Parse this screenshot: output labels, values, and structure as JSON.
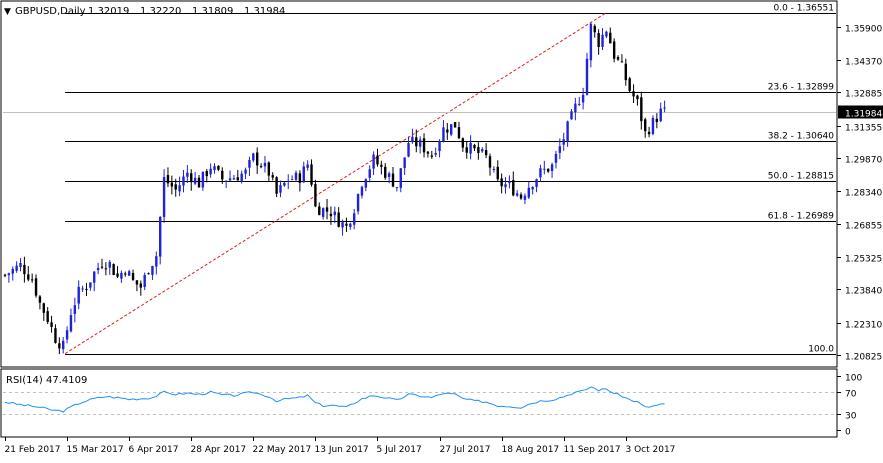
{
  "header": {
    "arrow": "▼",
    "symbol": "GBPUSD,Daily",
    "open": "1.32019",
    "high": "1.32220",
    "low": "1.31809",
    "close": "1.31984"
  },
  "colors": {
    "bull": "#1e22d8",
    "bear": "#000000",
    "fib": "#000000",
    "trend": "#e02020",
    "rsi": "#1e90ff",
    "grid": "#c0c0c0"
  },
  "chart_data": [
    {
      "type": "candlestick",
      "title": "GBPUSD,Daily",
      "ylim": [
        1.2032,
        1.3704
      ],
      "yticks": [
        "1.35900",
        "1.34370",
        "1.32885",
        "1.31355",
        "1.29870",
        "1.28340",
        "1.26855",
        "1.25325",
        "1.23840",
        "1.22310",
        "1.20825"
      ],
      "current_price": "1.31984",
      "current_price_value": 1.31984,
      "fib_levels": [
        {
          "label": "0.0 - 1.36551",
          "value": 1.36551
        },
        {
          "label": "23.6 - 1.32899",
          "value": 1.32899
        },
        {
          "label": "38.2 - 1.30640",
          "value": 1.3064
        },
        {
          "label": "50.0 - 1.28815",
          "value": 1.28815
        },
        {
          "label": "61.8 - 1.26989",
          "value": 1.26989
        },
        {
          "label": "100.0",
          "value": 1.2089
        }
      ],
      "trend_line": {
        "from": {
          "date": "2017-03-14",
          "price": 1.2089
        },
        "to": {
          "date": "2017-09-20",
          "price": 1.36551
        }
      },
      "xticks": [
        "21 Feb 2017",
        "15 Mar 2017",
        "6 Apr 2017",
        "28 Apr 2017",
        "22 May 2017",
        "13 Jun 2017",
        "5 Jul 2017",
        "27 Jul 2017",
        "18 Aug 2017",
        "11 Sep 2017",
        "3 Oct 2017"
      ],
      "xtick_index": [
        0,
        16,
        32,
        48,
        64,
        80,
        96,
        112,
        128,
        144,
        160
      ],
      "close_path": [
        [
          0,
          1.245
        ],
        [
          4,
          1.2495
        ],
        [
          7,
          1.243
        ],
        [
          9,
          1.232
        ],
        [
          11,
          1.225
        ],
        [
          13,
          1.216
        ],
        [
          15,
          1.212
        ],
        [
          17,
          1.228
        ],
        [
          19,
          1.237
        ],
        [
          21,
          1.24
        ],
        [
          23,
          1.246
        ],
        [
          25,
          1.251
        ],
        [
          27,
          1.25
        ],
        [
          29,
          1.244
        ],
        [
          31,
          1.248
        ],
        [
          33,
          1.242
        ],
        [
          35,
          1.2395
        ],
        [
          37,
          1.248
        ],
        [
          39,
          1.254
        ],
        [
          41,
          1.289
        ],
        [
          44,
          1.284
        ],
        [
          47,
          1.292
        ],
        [
          50,
          1.287
        ],
        [
          53,
          1.295
        ],
        [
          56,
          1.289
        ],
        [
          59,
          1.29
        ],
        [
          62,
          1.292
        ],
        [
          64,
          1.299
        ],
        [
          66,
          1.296
        ],
        [
          68,
          1.292
        ],
        [
          70,
          1.282
        ],
        [
          73,
          1.289
        ],
        [
          76,
          1.29
        ],
        [
          78,
          1.296
        ],
        [
          79,
          1.288
        ],
        [
          80,
          1.276
        ],
        [
          82,
          1.275
        ],
        [
          84,
          1.274
        ],
        [
          86,
          1.27
        ],
        [
          88,
          1.267
        ],
        [
          90,
          1.276
        ],
        [
          92,
          1.288
        ],
        [
          95,
          1.298
        ],
        [
          98,
          1.292
        ],
        [
          101,
          1.286
        ],
        [
          104,
          1.306
        ],
        [
          107,
          1.305
        ],
        [
          110,
          1.3
        ],
        [
          113,
          1.312
        ],
        [
          116,
          1.314
        ],
        [
          118,
          1.305
        ],
        [
          121,
          1.302
        ],
        [
          124,
          1.299
        ],
        [
          127,
          1.287
        ],
        [
          130,
          1.286
        ],
        [
          133,
          1.281
        ],
        [
          135,
          1.286
        ],
        [
          138,
          1.292
        ],
        [
          141,
          1.295
        ],
        [
          144,
          1.308
        ],
        [
          147,
          1.322
        ],
        [
          149,
          1.33
        ],
        [
          151,
          1.359
        ],
        [
          153,
          1.352
        ],
        [
          155,
          1.358
        ],
        [
          157,
          1.346
        ],
        [
          159,
          1.34
        ],
        [
          161,
          1.33
        ],
        [
          163,
          1.324
        ],
        [
          165,
          1.31
        ],
        [
          167,
          1.315
        ],
        [
          169,
          1.3198
        ]
      ],
      "rsi_title": "RSI(14) 47.4109",
      "rsi_levels": [
        "100",
        "70",
        "30",
        "0"
      ],
      "rsi_path": [
        [
          0,
          52
        ],
        [
          3,
          48
        ],
        [
          6,
          45
        ],
        [
          9,
          42
        ],
        [
          12,
          37
        ],
        [
          15,
          35
        ],
        [
          18,
          46
        ],
        [
          20,
          52
        ],
        [
          23,
          58
        ],
        [
          26,
          62
        ],
        [
          29,
          60
        ],
        [
          32,
          57
        ],
        [
          35,
          58
        ],
        [
          38,
          60
        ],
        [
          41,
          70
        ],
        [
          44,
          66
        ],
        [
          47,
          68
        ],
        [
          50,
          66
        ],
        [
          53,
          70
        ],
        [
          56,
          65
        ],
        [
          59,
          64
        ],
        [
          62,
          68
        ],
        [
          64,
          70
        ],
        [
          66,
          66
        ],
        [
          68,
          62
        ],
        [
          70,
          54
        ],
        [
          73,
          58
        ],
        [
          76,
          60
        ],
        [
          78,
          64
        ],
        [
          80,
          50
        ],
        [
          82,
          45
        ],
        [
          84,
          46
        ],
        [
          86,
          44
        ],
        [
          88,
          42
        ],
        [
          90,
          50
        ],
        [
          92,
          58
        ],
        [
          95,
          64
        ],
        [
          98,
          60
        ],
        [
          101,
          55
        ],
        [
          104,
          66
        ],
        [
          107,
          63
        ],
        [
          110,
          60
        ],
        [
          113,
          68
        ],
        [
          116,
          66
        ],
        [
          118,
          58
        ],
        [
          121,
          54
        ],
        [
          124,
          52
        ],
        [
          127,
          45
        ],
        [
          130,
          44
        ],
        [
          133,
          42
        ],
        [
          135,
          48
        ],
        [
          138,
          54
        ],
        [
          141,
          56
        ],
        [
          144,
          62
        ],
        [
          147,
          70
        ],
        [
          149,
          72
        ],
        [
          151,
          80
        ],
        [
          153,
          74
        ],
        [
          155,
          76
        ],
        [
          157,
          68
        ],
        [
          159,
          63
        ],
        [
          161,
          56
        ],
        [
          163,
          52
        ],
        [
          165,
          42
        ],
        [
          167,
          44
        ],
        [
          169,
          47.4
        ]
      ]
    }
  ]
}
